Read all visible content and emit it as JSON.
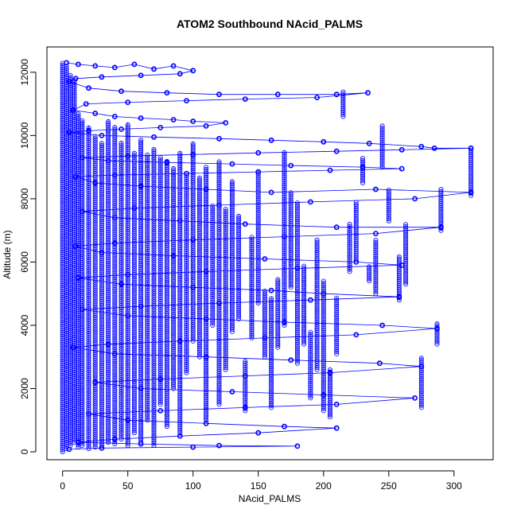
{
  "chart_data": {
    "type": "scatter",
    "title": "ATOM2 Southbound NAcid_PALMS",
    "xlabel": "NAcid_PALMS",
    "ylabel": "Altitude (m)",
    "xlim": [
      -12,
      330
    ],
    "ylim": [
      -250,
      12800
    ],
    "x_ticks": [
      "0",
      "50",
      "100",
      "150",
      "200",
      "250",
      "300"
    ],
    "y_ticks": [
      "0",
      "2000",
      "4000",
      "6000",
      "8000",
      "10000",
      "12000"
    ],
    "x_tick_values": [
      0,
      50,
      100,
      150,
      200,
      250,
      300
    ],
    "y_tick_values": [
      0,
      2000,
      4000,
      6000,
      8000,
      10000,
      12000
    ],
    "grid": false,
    "legend": "none",
    "marker": "open-circle",
    "connected": true,
    "color": "#0000ff",
    "series": [
      {
        "points": [
          [
            3,
            12300
          ],
          [
            12,
            12250
          ],
          [
            25,
            12200
          ],
          [
            40,
            12150
          ],
          [
            55,
            12250
          ],
          [
            70,
            12100
          ],
          [
            85,
            12200
          ],
          [
            100,
            12050
          ],
          [
            90,
            11950
          ],
          [
            60,
            11900
          ],
          [
            30,
            11850
          ],
          [
            10,
            11800
          ],
          [
            5,
            11700
          ],
          [
            20,
            11500
          ],
          [
            45,
            11400
          ],
          [
            80,
            11350
          ],
          [
            120,
            11300
          ],
          [
            165,
            11300
          ],
          [
            210,
            11300
          ],
          [
            234,
            11350
          ],
          [
            195,
            11200
          ],
          [
            140,
            11150
          ],
          [
            95,
            11100
          ],
          [
            50,
            11050
          ],
          [
            18,
            11000
          ],
          [
            8,
            10800
          ],
          [
            25,
            10700
          ],
          [
            40,
            10600
          ],
          [
            60,
            10550
          ],
          [
            85,
            10500
          ],
          [
            100,
            10450
          ],
          [
            125,
            10400
          ],
          [
            110,
            10300
          ],
          [
            75,
            10250
          ],
          [
            45,
            10200
          ],
          [
            20,
            10150
          ],
          [
            5,
            10100
          ],
          [
            30,
            10000
          ],
          [
            70,
            9950
          ],
          [
            120,
            9900
          ],
          [
            160,
            9850
          ],
          [
            200,
            9800
          ],
          [
            235,
            9750
          ],
          [
            275,
            9650
          ],
          [
            285,
            9600
          ],
          [
            313,
            9600
          ],
          [
            260,
            9550
          ],
          [
            210,
            9500
          ],
          [
            150,
            9450
          ],
          [
            100,
            9400
          ],
          [
            50,
            9350
          ],
          [
            15,
            9300
          ],
          [
            35,
            9200
          ],
          [
            80,
            9150
          ],
          [
            130,
            9100
          ],
          [
            175,
            9050
          ],
          [
            230,
            9000
          ],
          [
            260,
            8950
          ],
          [
            205,
            8900
          ],
          [
            150,
            8850
          ],
          [
            95,
            8800
          ],
          [
            40,
            8750
          ],
          [
            10,
            8700
          ],
          [
            25,
            8500
          ],
          [
            60,
            8400
          ],
          [
            110,
            8300
          ],
          [
            160,
            8200
          ],
          [
            240,
            8300
          ],
          [
            313,
            8200
          ],
          [
            270,
            8000
          ],
          [
            190,
            7900
          ],
          [
            120,
            7800
          ],
          [
            55,
            7700
          ],
          [
            15,
            7600
          ],
          [
            40,
            7400
          ],
          [
            90,
            7300
          ],
          [
            140,
            7200
          ],
          [
            210,
            7100
          ],
          [
            290,
            7100
          ],
          [
            240,
            6900
          ],
          [
            170,
            6800
          ],
          [
            100,
            6700
          ],
          [
            40,
            6600
          ],
          [
            10,
            6500
          ],
          [
            30,
            6300
          ],
          [
            85,
            6200
          ],
          [
            155,
            6100
          ],
          [
            225,
            6000
          ],
          [
            260,
            5900
          ],
          [
            180,
            5800
          ],
          [
            110,
            5700
          ],
          [
            50,
            5600
          ],
          [
            12,
            5500
          ],
          [
            45,
            5300
          ],
          [
            100,
            5200
          ],
          [
            160,
            5100
          ],
          [
            200,
            5000
          ],
          [
            258,
            4900
          ],
          [
            190,
            4800
          ],
          [
            120,
            4700
          ],
          [
            60,
            4600
          ],
          [
            15,
            4500
          ],
          [
            50,
            4300
          ],
          [
            110,
            4200
          ],
          [
            170,
            4100
          ],
          [
            245,
            4000
          ],
          [
            287,
            3900
          ],
          [
            225,
            3700
          ],
          [
            155,
            3600
          ],
          [
            90,
            3500
          ],
          [
            35,
            3400
          ],
          [
            8,
            3300
          ],
          [
            40,
            3100
          ],
          [
            110,
            3000
          ],
          [
            175,
            2900
          ],
          [
            243,
            2800
          ],
          [
            275,
            2700
          ],
          [
            205,
            2500
          ],
          [
            140,
            2400
          ],
          [
            75,
            2300
          ],
          [
            25,
            2200
          ],
          [
            60,
            2000
          ],
          [
            130,
            1900
          ],
          [
            200,
            1800
          ],
          [
            270,
            1700
          ],
          [
            210,
            1500
          ],
          [
            140,
            1400
          ],
          [
            75,
            1300
          ],
          [
            20,
            1200
          ],
          [
            50,
            1000
          ],
          [
            110,
            900
          ],
          [
            170,
            800
          ],
          [
            210,
            750
          ],
          [
            150,
            600
          ],
          [
            90,
            500
          ],
          [
            40,
            400
          ],
          [
            12,
            300
          ],
          [
            60,
            250
          ],
          [
            120,
            200
          ],
          [
            180,
            180
          ],
          [
            100,
            150
          ],
          [
            30,
            120
          ],
          [
            5,
            80
          ]
        ]
      }
    ],
    "vertical_profiles": [
      [
        0,
        0,
        12300
      ],
      [
        3,
        100,
        12200
      ],
      [
        6,
        200,
        11900
      ],
      [
        9,
        300,
        11800
      ],
      [
        12,
        150,
        10700
      ],
      [
        15,
        200,
        10500
      ],
      [
        20,
        100,
        10300
      ],
      [
        25,
        150,
        10000
      ],
      [
        30,
        200,
        9800
      ],
      [
        35,
        300,
        10500
      ],
      [
        40,
        250,
        10300
      ],
      [
        45,
        400,
        9800
      ],
      [
        50,
        200,
        10400
      ],
      [
        55,
        600,
        9500
      ],
      [
        60,
        300,
        9900
      ],
      [
        65,
        1000,
        9400
      ],
      [
        70,
        200,
        9600
      ],
      [
        75,
        1500,
        9300
      ],
      [
        80,
        800,
        9200
      ],
      [
        85,
        2000,
        9000
      ],
      [
        90,
        600,
        9500
      ],
      [
        95,
        2500,
        8800
      ],
      [
        100,
        3500,
        9800
      ],
      [
        105,
        3000,
        8700
      ],
      [
        110,
        1000,
        9000
      ],
      [
        115,
        4000,
        7800
      ],
      [
        120,
        1500,
        9200
      ],
      [
        125,
        2600,
        7700
      ],
      [
        130,
        3800,
        8600
      ],
      [
        135,
        4200,
        7500
      ],
      [
        140,
        1300,
        2900
      ],
      [
        145,
        3600,
        6800
      ],
      [
        150,
        4700,
        8900
      ],
      [
        155,
        3000,
        5100
      ],
      [
        160,
        1400,
        4900
      ],
      [
        165,
        3300,
        5500
      ],
      [
        170,
        4000,
        9500
      ],
      [
        175,
        5200,
        8200
      ],
      [
        180,
        2800,
        7900
      ],
      [
        185,
        3400,
        5900
      ],
      [
        190,
        1700,
        3800
      ],
      [
        195,
        2600,
        6700
      ],
      [
        200,
        1300,
        5400
      ],
      [
        205,
        1100,
        2600
      ],
      [
        210,
        3100,
        4900
      ],
      [
        215,
        10600,
        11400
      ],
      [
        220,
        5700,
        7200
      ],
      [
        225,
        6000,
        7900
      ],
      [
        230,
        8500,
        9300
      ],
      [
        235,
        5400,
        5900
      ],
      [
        240,
        5000,
        6700
      ],
      [
        245,
        9000,
        10300
      ],
      [
        250,
        7300,
        8300
      ],
      [
        258,
        4800,
        6200
      ],
      [
        263,
        5300,
        7200
      ],
      [
        275,
        1400,
        3000
      ],
      [
        287,
        3400,
        4100
      ],
      [
        290,
        7000,
        8300
      ],
      [
        313,
        8100,
        9600
      ]
    ]
  }
}
